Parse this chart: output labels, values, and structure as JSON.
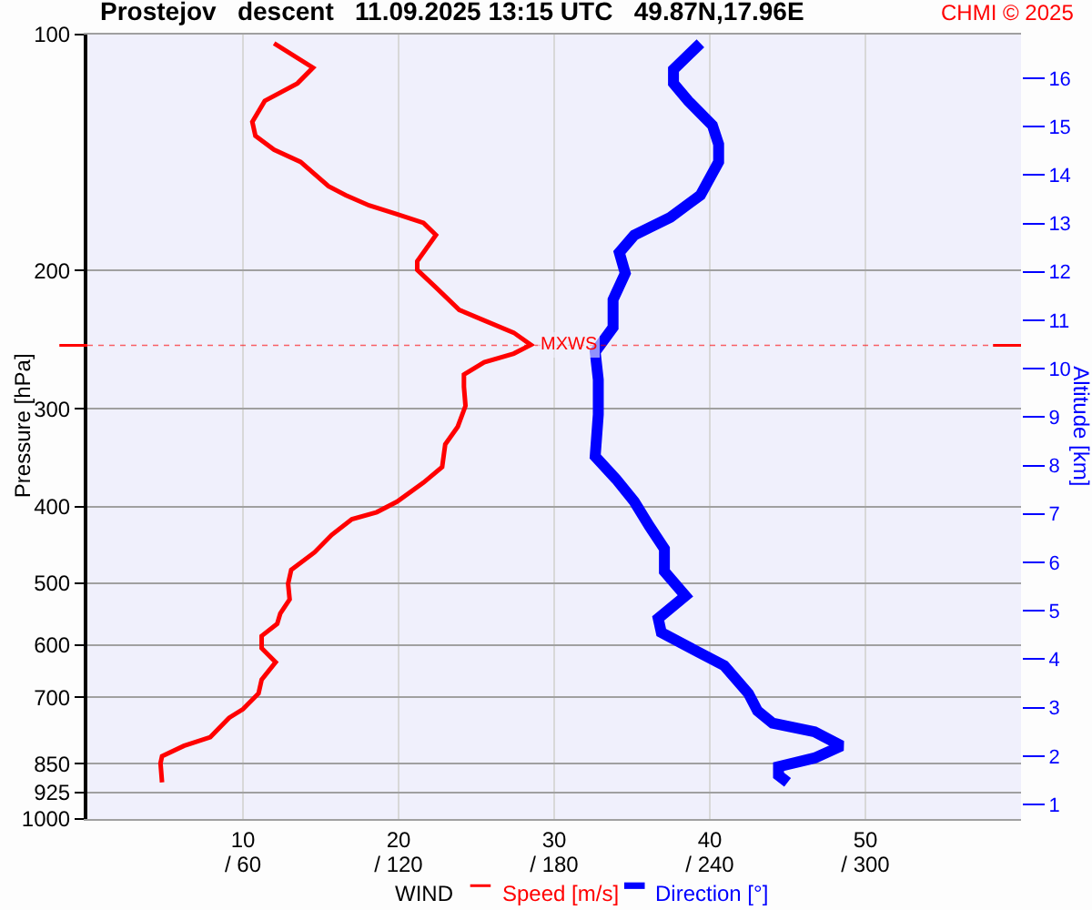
{
  "chart_data": {
    "type": "line",
    "orientation": "horizontal",
    "title": "Prostejov   descent   11.09.2025 13:15 UTC   49.87N,17.96E",
    "annotations": [
      "CHMI © 2025"
    ],
    "xlabel": "WIND",
    "ylabel": "Pressure [hPa]",
    "y2label": "Altitude [km]",
    "xlim": [
      0,
      60
    ],
    "xticks": [
      10,
      20,
      30,
      40,
      50
    ],
    "x2lim": [
      0,
      360
    ],
    "x2ticks": [
      {
        "value": 60,
        "label": "/ 60"
      },
      {
        "value": 120,
        "label": "/ 120"
      },
      {
        "value": 180,
        "label": "/ 180"
      },
      {
        "value": 240,
        "label": "/ 240"
      },
      {
        "value": 300,
        "label": "/ 300"
      }
    ],
    "ylim": [
      1000,
      100
    ],
    "yticks": [
      100,
      200,
      300,
      400,
      500,
      600,
      700,
      850,
      925,
      1000
    ],
    "log": "y",
    "y2lim": [
      0.7,
      16.9
    ],
    "y2ticks": [
      1,
      2,
      3,
      4,
      5,
      6,
      7,
      8,
      9,
      10,
      11,
      12,
      13,
      14,
      15,
      16
    ],
    "grid": true,
    "legend": "bottom",
    "marker": "none",
    "line_style": "solid",
    "ref_lines": [
      {
        "axis": "y",
        "value": 249,
        "label": "MXWS",
        "color": "#ff0000"
      }
    ],
    "series": [
      {
        "name": "Speed [m/s]",
        "color": "#ff0000",
        "x": [
          102.6,
          110.2,
          115.4,
          121.5,
          129.2,
          134.6,
          140.2,
          145.3,
          156.1,
          160.2,
          165.1,
          169.4,
          173.8,
          180.1,
          194.5,
          199.5,
          210.1,
          224.4,
          231.4,
          239.9,
          248.6,
          255.1,
          261.7,
          271.3,
          281.2,
          297.4,
          316.2,
          332.9,
          355.8,
          372.5,
          394.0,
          406.3,
          414.7,
          434.3,
          457.1,
          481.2,
          501.2,
          524.8,
          546.8,
          563.8,
          584.4,
          605.7,
          631.0,
          664.3,
          691.8,
          724.4,
          743.2,
          786.3,
          806.8,
          831.8,
          849.0,
          897.9
        ],
        "values": [
          12.0,
          14.5,
          13.5,
          11.4,
          10.6,
          10.8,
          12.0,
          13.7,
          15.5,
          16.6,
          18.1,
          19.9,
          21.6,
          22.4,
          21.2,
          21.2,
          22.4,
          23.9,
          25.5,
          27.4,
          28.5,
          27.4,
          25.5,
          24.2,
          24.2,
          24.3,
          23.8,
          23.0,
          22.8,
          21.6,
          19.9,
          18.6,
          17.0,
          15.7,
          14.6,
          13.1,
          12.9,
          13.0,
          12.4,
          12.2,
          11.2,
          11.2,
          12.1,
          11.2,
          11.0,
          10.0,
          9.1,
          7.9,
          6.2,
          4.8,
          4.7,
          4.8
        ]
      },
      {
        "name": "Direction [°]",
        "color": "#0000ff",
        "axis": "x2",
        "x": [
          102.6,
          110.8,
          115.4,
          121.5,
          130.5,
          138.0,
          145.3,
          160.2,
          171.0,
          180.1,
          189.6,
          201.5,
          217.7,
          236.2,
          253.8,
          275.4,
          305.0,
          345.0,
          368.8,
          394.0,
          423.3,
          452.4,
          483.6,
          519.5,
          555.0,
          578.3,
          608.8,
          637.5,
          691.8,
          728.1,
          754.6,
          774.3,
          806.8,
          836.0,
          857.7,
          879.6,
          897.9
        ],
        "values": [
          236.4,
          226.0,
          226.0,
          231.7,
          241.0,
          243.4,
          243.4,
          236.4,
          224.8,
          210.9,
          205.1,
          207.4,
          202.7,
          202.7,
          195.8,
          197.0,
          197.0,
          195.8,
          203.9,
          210.9,
          216.7,
          222.5,
          222.5,
          230.6,
          220.1,
          221.3,
          234.0,
          245.6,
          254.9,
          258.4,
          264.2,
          280.4,
          290.8,
          280.4,
          266.5,
          266.5,
          270.0
        ]
      }
    ]
  }
}
